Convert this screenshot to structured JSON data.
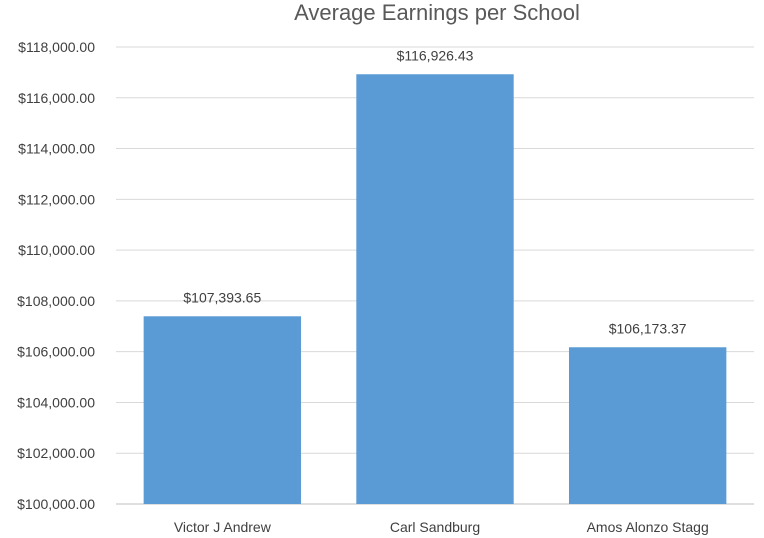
{
  "chart_data": {
    "type": "bar",
    "title": "Average Earnings per School",
    "categories": [
      "Victor J Andrew",
      "Carl Sandburg",
      "Amos Alonzo Stagg"
    ],
    "values": [
      107393.65,
      116926.43,
      106173.37
    ],
    "data_labels": [
      "$107,393.65",
      "$116,926.43",
      "$106,173.37"
    ],
    "ylim": [
      100000,
      118000
    ],
    "yticks": [
      100000,
      102000,
      104000,
      106000,
      108000,
      110000,
      112000,
      114000,
      116000,
      118000
    ],
    "ytick_labels": [
      "$100,000.00",
      "$102,000.00",
      "$104,000.00",
      "$106,000.00",
      "$108,000.00",
      "$110,000.00",
      "$112,000.00",
      "$114,000.00",
      "$116,000.00",
      "$118,000.00"
    ],
    "xlabel": "",
    "ylabel": "",
    "grid": true,
    "legend": false,
    "bar_color": "#5b9bd5"
  }
}
